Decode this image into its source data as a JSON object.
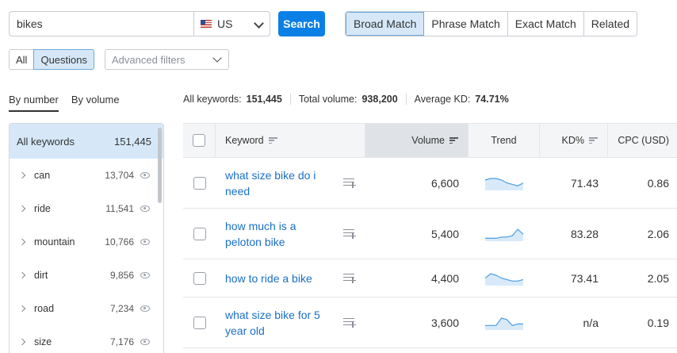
{
  "search": {
    "query": "bikes",
    "country": "US",
    "button": "Search"
  },
  "match_types": [
    {
      "label": "Broad Match",
      "active": true
    },
    {
      "label": "Phrase Match",
      "active": false
    },
    {
      "label": "Exact Match",
      "active": false
    },
    {
      "label": "Related",
      "active": false
    }
  ],
  "filters": {
    "all_label": "All",
    "questions_label": "Questions",
    "advanced_placeholder": "Advanced filters"
  },
  "sort_tabs": {
    "by_number": "By number",
    "by_volume": "By volume"
  },
  "summary": {
    "all_keywords_label": "All keywords:",
    "all_keywords_value": "151,445",
    "total_volume_label": "Total volume:",
    "total_volume_value": "938,200",
    "avg_kd_label": "Average KD:",
    "avg_kd_value": "74.71%"
  },
  "groups": {
    "all": {
      "label": "All keywords",
      "count": "151,445"
    },
    "items": [
      {
        "word": "can",
        "count": "13,704"
      },
      {
        "word": "ride",
        "count": "11,541"
      },
      {
        "word": "mountain",
        "count": "10,766"
      },
      {
        "word": "dirt",
        "count": "9,856"
      },
      {
        "word": "road",
        "count": "7,234"
      },
      {
        "word": "size",
        "count": "7,176"
      }
    ]
  },
  "table": {
    "headers": {
      "keyword": "Keyword",
      "volume": "Volume",
      "trend": "Trend",
      "kd": "KD%",
      "cpc": "CPC (USD)"
    },
    "rows": [
      {
        "keyword": "what size bike do i need",
        "volume": "6,600",
        "kd": "71.43",
        "cpc": "0.86",
        "trend": [
          6,
          7,
          7,
          6,
          4,
          3,
          2,
          4
        ]
      },
      {
        "keyword": "how much is a peloton bike",
        "volume": "5,400",
        "kd": "83.28",
        "cpc": "2.06",
        "trend": [
          1,
          1,
          1,
          2,
          2,
          3,
          8,
          4
        ]
      },
      {
        "keyword": "how to ride a bike",
        "volume": "4,400",
        "kd": "73.41",
        "cpc": "2.05",
        "trend": [
          4,
          7,
          6,
          4,
          3,
          2,
          2,
          3
        ]
      },
      {
        "keyword": "what size bike for 5 year old",
        "volume": "3,600",
        "kd": "n/a",
        "cpc": "0.19",
        "trend": [
          2,
          2,
          2,
          7,
          6,
          2,
          3,
          3
        ]
      }
    ]
  },
  "colors": {
    "accent": "#0a80e6",
    "active_bg": "#d6e8f8",
    "link": "#1a6fc4",
    "spark_line": "#4a9ee0",
    "spark_fill": "#d8eafa"
  }
}
